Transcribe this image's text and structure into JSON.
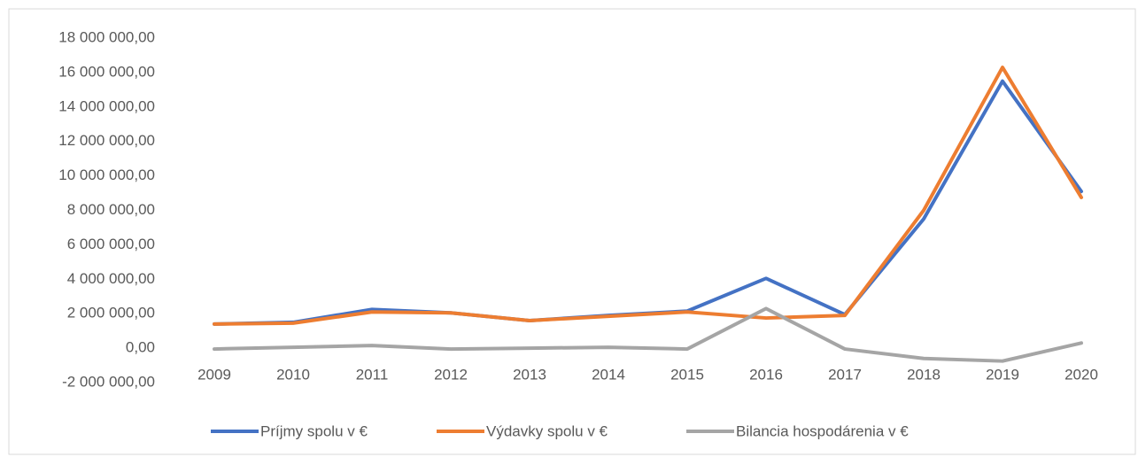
{
  "chart_data": {
    "type": "line",
    "categories": [
      "2009",
      "2010",
      "2011",
      "2012",
      "2013",
      "2014",
      "2015",
      "2016",
      "2017",
      "2018",
      "2019",
      "2020"
    ],
    "series": [
      {
        "name": "Príjmy spolu v €",
        "color": "#4472c4",
        "values": [
          1400000,
          1500000,
          2250000,
          2050000,
          1600000,
          1900000,
          2150000,
          4050000,
          1950000,
          7500000,
          15500000,
          9100000
        ]
      },
      {
        "name": "Výdavky spolu v €",
        "color": "#ed7d31",
        "values": [
          1400000,
          1450000,
          2100000,
          2050000,
          1600000,
          1850000,
          2100000,
          1750000,
          1900000,
          8000000,
          16300000,
          8750000
        ]
      },
      {
        "name": "Bilancia hospodárenia v €",
        "color": "#a5a5a5",
        "values": [
          -50000,
          50000,
          150000,
          -50000,
          0,
          50000,
          -50000,
          2300000,
          -50000,
          -600000,
          -750000,
          300000
        ]
      }
    ],
    "ylim": [
      -2000000,
      18000000
    ],
    "yticks": [
      {
        "value": -2000000,
        "label": "-2 000 000,00"
      },
      {
        "value": 0,
        "label": "0,00"
      },
      {
        "value": 2000000,
        "label": "2 000 000,00"
      },
      {
        "value": 4000000,
        "label": "4 000 000,00"
      },
      {
        "value": 6000000,
        "label": "6 000 000,00"
      },
      {
        "value": 8000000,
        "label": "8 000 000,00"
      },
      {
        "value": 10000000,
        "label": "10 000 000,00"
      },
      {
        "value": 12000000,
        "label": "12 000 000,00"
      },
      {
        "value": 14000000,
        "label": "14 000 000,00"
      },
      {
        "value": 16000000,
        "label": "16 000 000,00"
      },
      {
        "value": 18000000,
        "label": "18 000 000,00"
      }
    ],
    "grid": false,
    "legend": "bottom"
  }
}
